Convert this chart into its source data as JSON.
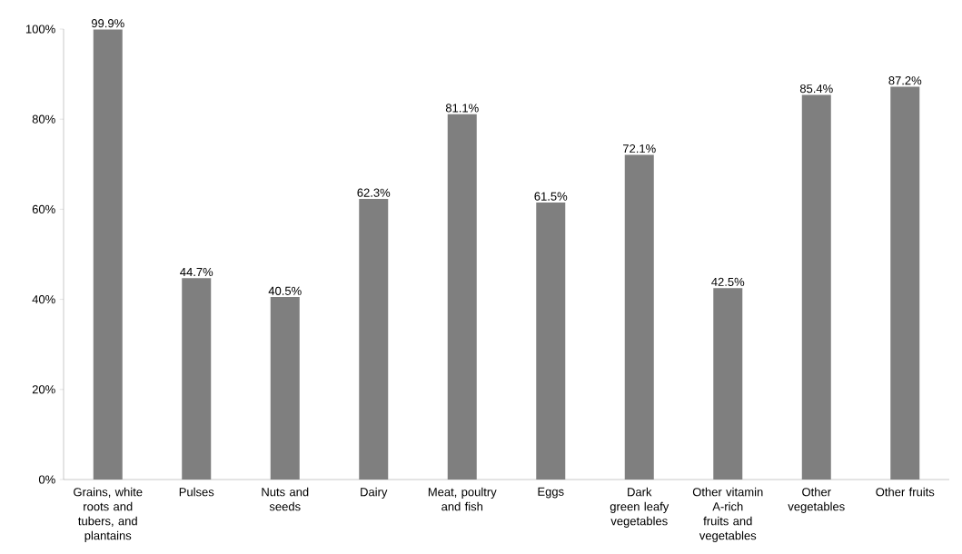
{
  "chart_data": {
    "type": "bar",
    "categories": [
      "Grains, white roots and tubers, and plantains",
      "Pulses",
      "Nuts and seeds",
      "Dairy",
      "Meat, poultry and fish",
      "Eggs",
      "Dark green leafy vegetables",
      "Other vitamin A-rich fruits and vegetables",
      "Other vegetables",
      "Other fruits"
    ],
    "values": [
      99.9,
      44.7,
      40.5,
      62.3,
      81.1,
      61.5,
      72.1,
      42.5,
      85.4,
      87.2
    ],
    "value_labels": [
      "99.9%",
      "44.7%",
      "40.5%",
      "62.3%",
      "81.1%",
      "61.5%",
      "72.1%",
      "42.5%",
      "85.4%",
      "87.2%"
    ],
    "color": "#7f7f7f",
    "ylim": [
      0,
      100
    ],
    "yticks": [
      {
        "value": 0,
        "label": "0%"
      },
      {
        "value": 20,
        "label": "20%"
      },
      {
        "value": 40,
        "label": "40%"
      },
      {
        "value": 60,
        "label": "60%"
      },
      {
        "value": 80,
        "label": "80%"
      },
      {
        "value": 100,
        "label": "100%"
      }
    ],
    "grid": false
  }
}
